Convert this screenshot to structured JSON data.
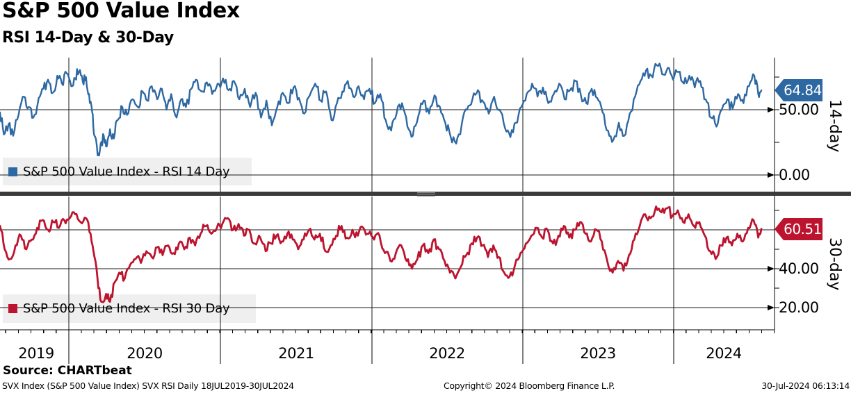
{
  "header": {
    "title": "S&P 500 Value Index",
    "subtitle": "RSI 14-Day & 30-Day"
  },
  "source_line": "Source: CHARTbeat",
  "footer": {
    "left": "SVX Index (S&P 500 Value Index) SVX RSI  Daily 18JUL2019-30JUL2024",
    "center": "Copyright© 2024 Bloomberg Finance L.P.",
    "right": "30-Jul-2024 06:13:14"
  },
  "chart_data": {
    "type": "line",
    "title": "S&P 500 Value Index",
    "subtitle": "RSI 14-Day & 30-Day",
    "x_range": [
      "18JUL2019",
      "30JUL2024"
    ],
    "x_axis_years": [
      "2019",
      "2020",
      "2021",
      "2022",
      "2023",
      "2024"
    ],
    "grid": "on",
    "panels": [
      {
        "id": "rsi14",
        "legend": "S&P 500 Value Index - RSI 14 Day",
        "axis_title": "14-day",
        "color": "#2e68a2",
        "last_value": 64.84,
        "last_value_label": "64.84",
        "ylim": [
          0,
          90
        ],
        "ticks": [
          {
            "value": 50,
            "label": "50.00"
          },
          {
            "value": 0,
            "label": "0.00"
          }
        ],
        "minor_ticks": [
          75,
          25
        ],
        "gridlines": [
          50,
          0
        ],
        "jitter": 5,
        "seed": 7,
        "points": [
          [
            0.0,
            48
          ],
          [
            0.005,
            31
          ],
          [
            0.011,
            39
          ],
          [
            0.017,
            30
          ],
          [
            0.024,
            46
          ],
          [
            0.031,
            60
          ],
          [
            0.037,
            52
          ],
          [
            0.043,
            44
          ],
          [
            0.05,
            59
          ],
          [
            0.056,
            66
          ],
          [
            0.062,
            73
          ],
          [
            0.068,
            63
          ],
          [
            0.074,
            76
          ],
          [
            0.08,
            70
          ],
          [
            0.086,
            78
          ],
          [
            0.092,
            68
          ],
          [
            0.097,
            74
          ],
          [
            0.102,
            79
          ],
          [
            0.107,
            71
          ],
          [
            0.111,
            75
          ],
          [
            0.115,
            62
          ],
          [
            0.119,
            48
          ],
          [
            0.122,
            30
          ],
          [
            0.126,
            15
          ],
          [
            0.13,
            24
          ],
          [
            0.134,
            30
          ],
          [
            0.138,
            22
          ],
          [
            0.142,
            35
          ],
          [
            0.147,
            28
          ],
          [
            0.152,
            42
          ],
          [
            0.158,
            52
          ],
          [
            0.164,
            46
          ],
          [
            0.171,
            58
          ],
          [
            0.178,
            52
          ],
          [
            0.184,
            64
          ],
          [
            0.19,
            57
          ],
          [
            0.196,
            68
          ],
          [
            0.203,
            58
          ],
          [
            0.209,
            66
          ],
          [
            0.215,
            50
          ],
          [
            0.221,
            62
          ],
          [
            0.228,
            44
          ],
          [
            0.234,
            58
          ],
          [
            0.24,
            52
          ],
          [
            0.247,
            66
          ],
          [
            0.253,
            73
          ],
          [
            0.26,
            64
          ],
          [
            0.267,
            71
          ],
          [
            0.274,
            62
          ],
          [
            0.281,
            70
          ],
          [
            0.288,
            74
          ],
          [
            0.295,
            65
          ],
          [
            0.302,
            72
          ],
          [
            0.309,
            58
          ],
          [
            0.316,
            66
          ],
          [
            0.323,
            52
          ],
          [
            0.33,
            63
          ],
          [
            0.337,
            44
          ],
          [
            0.344,
            57
          ],
          [
            0.351,
            38
          ],
          [
            0.358,
            52
          ],
          [
            0.365,
            63
          ],
          [
            0.372,
            55
          ],
          [
            0.379,
            67
          ],
          [
            0.386,
            59
          ],
          [
            0.393,
            47
          ],
          [
            0.4,
            61
          ],
          [
            0.407,
            70
          ],
          [
            0.414,
            57
          ],
          [
            0.421,
            64
          ],
          [
            0.428,
            42
          ],
          [
            0.435,
            55
          ],
          [
            0.442,
            64
          ],
          [
            0.449,
            72
          ],
          [
            0.456,
            60
          ],
          [
            0.463,
            68
          ],
          [
            0.47,
            58
          ],
          [
            0.477,
            66
          ],
          [
            0.484,
            55
          ],
          [
            0.491,
            62
          ],
          [
            0.498,
            42
          ],
          [
            0.505,
            34
          ],
          [
            0.512,
            47
          ],
          [
            0.519,
            55
          ],
          [
            0.526,
            37
          ],
          [
            0.533,
            30
          ],
          [
            0.54,
            45
          ],
          [
            0.547,
            57
          ],
          [
            0.554,
            47
          ],
          [
            0.561,
            61
          ],
          [
            0.568,
            52
          ],
          [
            0.575,
            40
          ],
          [
            0.582,
            29
          ],
          [
            0.589,
            24
          ],
          [
            0.596,
            38
          ],
          [
            0.603,
            50
          ],
          [
            0.61,
            58
          ],
          [
            0.617,
            65
          ],
          [
            0.624,
            56
          ],
          [
            0.631,
            47
          ],
          [
            0.638,
            60
          ],
          [
            0.645,
            50
          ],
          [
            0.652,
            36
          ],
          [
            0.659,
            29
          ],
          [
            0.666,
            40
          ],
          [
            0.673,
            52
          ],
          [
            0.68,
            62
          ],
          [
            0.687,
            70
          ],
          [
            0.694,
            60
          ],
          [
            0.701,
            67
          ],
          [
            0.708,
            55
          ],
          [
            0.715,
            62
          ],
          [
            0.722,
            70
          ],
          [
            0.729,
            58
          ],
          [
            0.736,
            65
          ],
          [
            0.743,
            72
          ],
          [
            0.75,
            61
          ],
          [
            0.757,
            55
          ],
          [
            0.764,
            66
          ],
          [
            0.771,
            59
          ],
          [
            0.778,
            48
          ],
          [
            0.785,
            34
          ],
          [
            0.792,
            27
          ],
          [
            0.799,
            40
          ],
          [
            0.806,
            30
          ],
          [
            0.813,
            47
          ],
          [
            0.82,
            60
          ],
          [
            0.827,
            72
          ],
          [
            0.834,
            80
          ],
          [
            0.841,
            76
          ],
          [
            0.848,
            84
          ],
          [
            0.855,
            77
          ],
          [
            0.862,
            82
          ],
          [
            0.869,
            73
          ],
          [
            0.876,
            79
          ],
          [
            0.883,
            70
          ],
          [
            0.89,
            76
          ],
          [
            0.897,
            67
          ],
          [
            0.904,
            72
          ],
          [
            0.911,
            58
          ],
          [
            0.918,
            44
          ],
          [
            0.925,
            37
          ],
          [
            0.932,
            50
          ],
          [
            0.939,
            58
          ],
          [
            0.946,
            51
          ],
          [
            0.953,
            62
          ],
          [
            0.96,
            55
          ],
          [
            0.967,
            68
          ],
          [
            0.974,
            76
          ],
          [
            0.979,
            62
          ],
          [
            0.983,
            64.84
          ]
        ]
      },
      {
        "id": "rsi30",
        "legend": "S&P 500 Value Index - RSI 30 Day",
        "axis_title": "30-day",
        "color": "#bc142f",
        "last_value": 60.51,
        "last_value_label": "60.51",
        "ylim": [
          10,
          77
        ],
        "ticks": [
          {
            "value": 40,
            "label": "40.00"
          },
          {
            "value": 20,
            "label": "20.00"
          }
        ],
        "minor_ticks": [
          70,
          50,
          30
        ],
        "gridlines": [
          60,
          40,
          20
        ],
        "jitter": 2.8,
        "seed": 13,
        "points": [
          [
            0.0,
            62
          ],
          [
            0.006,
            50
          ],
          [
            0.013,
            45
          ],
          [
            0.02,
            52
          ],
          [
            0.027,
            57
          ],
          [
            0.034,
            50
          ],
          [
            0.041,
            55
          ],
          [
            0.048,
            61
          ],
          [
            0.055,
            65
          ],
          [
            0.062,
            60
          ],
          [
            0.069,
            64
          ],
          [
            0.076,
            61
          ],
          [
            0.083,
            65
          ],
          [
            0.09,
            66
          ],
          [
            0.097,
            68
          ],
          [
            0.104,
            64
          ],
          [
            0.111,
            66
          ],
          [
            0.117,
            58
          ],
          [
            0.122,
            46
          ],
          [
            0.127,
            30
          ],
          [
            0.132,
            23
          ],
          [
            0.137,
            27
          ],
          [
            0.142,
            23
          ],
          [
            0.148,
            33
          ],
          [
            0.154,
            38
          ],
          [
            0.161,
            35
          ],
          [
            0.168,
            42
          ],
          [
            0.175,
            45
          ],
          [
            0.182,
            43
          ],
          [
            0.189,
            49
          ],
          [
            0.196,
            46
          ],
          [
            0.203,
            51
          ],
          [
            0.21,
            47
          ],
          [
            0.217,
            52
          ],
          [
            0.224,
            48
          ],
          [
            0.231,
            53
          ],
          [
            0.238,
            50
          ],
          [
            0.245,
            56
          ],
          [
            0.252,
            52
          ],
          [
            0.259,
            58
          ],
          [
            0.266,
            62
          ],
          [
            0.273,
            58
          ],
          [
            0.28,
            61
          ],
          [
            0.287,
            63
          ],
          [
            0.294,
            66
          ],
          [
            0.301,
            60
          ],
          [
            0.308,
            63
          ],
          [
            0.315,
            57
          ],
          [
            0.322,
            60
          ],
          [
            0.329,
            53
          ],
          [
            0.336,
            56
          ],
          [
            0.343,
            49
          ],
          [
            0.35,
            53
          ],
          [
            0.357,
            57
          ],
          [
            0.364,
            54
          ],
          [
            0.371,
            58
          ],
          [
            0.378,
            55
          ],
          [
            0.385,
            50
          ],
          [
            0.392,
            55
          ],
          [
            0.399,
            60
          ],
          [
            0.406,
            55
          ],
          [
            0.413,
            58
          ],
          [
            0.42,
            49
          ],
          [
            0.427,
            52
          ],
          [
            0.434,
            57
          ],
          [
            0.441,
            62
          ],
          [
            0.448,
            56
          ],
          [
            0.455,
            60
          ],
          [
            0.462,
            57
          ],
          [
            0.469,
            61
          ],
          [
            0.476,
            58
          ],
          [
            0.483,
            55
          ],
          [
            0.49,
            57
          ],
          [
            0.497,
            48
          ],
          [
            0.504,
            44
          ],
          [
            0.511,
            48
          ],
          [
            0.518,
            52
          ],
          [
            0.525,
            44
          ],
          [
            0.532,
            40
          ],
          [
            0.539,
            45
          ],
          [
            0.546,
            52
          ],
          [
            0.553,
            48
          ],
          [
            0.56,
            55
          ],
          [
            0.567,
            50
          ],
          [
            0.574,
            44
          ],
          [
            0.581,
            38
          ],
          [
            0.588,
            35
          ],
          [
            0.595,
            41
          ],
          [
            0.602,
            47
          ],
          [
            0.609,
            53
          ],
          [
            0.616,
            56
          ],
          [
            0.623,
            52
          ],
          [
            0.63,
            46
          ],
          [
            0.637,
            52
          ],
          [
            0.644,
            46
          ],
          [
            0.651,
            38
          ],
          [
            0.658,
            36
          ],
          [
            0.665,
            42
          ],
          [
            0.672,
            48
          ],
          [
            0.679,
            53
          ],
          [
            0.686,
            57
          ],
          [
            0.693,
            61
          ],
          [
            0.7,
            56
          ],
          [
            0.707,
            60
          ],
          [
            0.714,
            53
          ],
          [
            0.721,
            57
          ],
          [
            0.728,
            62
          ],
          [
            0.735,
            56
          ],
          [
            0.742,
            60
          ],
          [
            0.749,
            64
          ],
          [
            0.756,
            58
          ],
          [
            0.763,
            54
          ],
          [
            0.77,
            60
          ],
          [
            0.777,
            54
          ],
          [
            0.784,
            44
          ],
          [
            0.791,
            38
          ],
          [
            0.798,
            44
          ],
          [
            0.805,
            39
          ],
          [
            0.812,
            47
          ],
          [
            0.819,
            55
          ],
          [
            0.826,
            62
          ],
          [
            0.833,
            68
          ],
          [
            0.84,
            66
          ],
          [
            0.847,
            72
          ],
          [
            0.854,
            69
          ],
          [
            0.861,
            71
          ],
          [
            0.868,
            67
          ],
          [
            0.875,
            70
          ],
          [
            0.882,
            64
          ],
          [
            0.889,
            68
          ],
          [
            0.896,
            62
          ],
          [
            0.903,
            64
          ],
          [
            0.91,
            57
          ],
          [
            0.917,
            49
          ],
          [
            0.924,
            45
          ],
          [
            0.931,
            52
          ],
          [
            0.938,
            56
          ],
          [
            0.945,
            52
          ],
          [
            0.952,
            58
          ],
          [
            0.959,
            54
          ],
          [
            0.966,
            61
          ],
          [
            0.973,
            65
          ],
          [
            0.979,
            56
          ],
          [
            0.983,
            60.51
          ]
        ]
      }
    ]
  }
}
